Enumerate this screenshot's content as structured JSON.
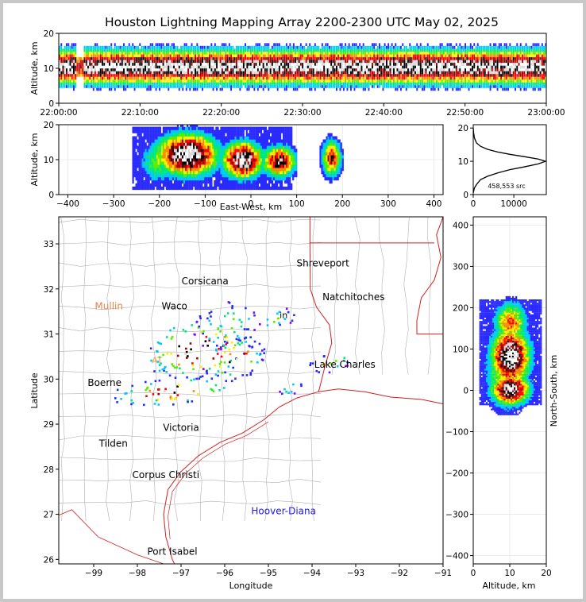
{
  "title": "Houston Lightning Mapping Array 2200-2300 UTC May 02, 2025",
  "chart_data": [
    {
      "name": "altitude-vs-time",
      "type": "heatmap",
      "ylabel": "Altitude, km",
      "ylim": [
        0,
        20
      ],
      "y_ticks": [
        "0",
        "10",
        "20"
      ],
      "x_ticks": [
        "22:00:00",
        "22:10:00",
        "22:20:00",
        "22:30:00",
        "22:40:00",
        "22:50:00",
        "23:00:00"
      ],
      "xlim": [
        "22:00:00",
        "23:00:00"
      ],
      "data_gap": [
        "22:02:00",
        "22:03:00"
      ],
      "peak_altitude_km": 10
    },
    {
      "name": "altitude-vs-east-west",
      "type": "heatmap",
      "xlabel": "East-West, km",
      "ylabel": "Altitude, km",
      "xlim": [
        -420,
        420
      ],
      "ylim": [
        0,
        20
      ],
      "x_ticks": [
        "−400",
        "−300",
        "−200",
        "−100",
        "0",
        "100",
        "200",
        "300",
        "400"
      ],
      "y_ticks": [
        "0",
        "10",
        "20"
      ],
      "grid": true
    },
    {
      "name": "altitude-histogram",
      "type": "line",
      "xlim": [
        0,
        18000
      ],
      "ylim": [
        0,
        21
      ],
      "x_ticks": [
        "0",
        "10000"
      ],
      "y_ticks": [
        "0",
        "10",
        "20"
      ],
      "annotation": "458,553 src",
      "series": [
        {
          "x": [
            0,
            100,
            300,
            800,
            1800,
            3500,
            6000,
            9000,
            12500,
            16000,
            17800,
            16000,
            12500,
            9000,
            6000,
            3500,
            1800,
            800,
            300,
            100,
            0
          ],
          "y": [
            0.5,
            1,
            2,
            3,
            4.5,
            5.5,
            6.5,
            7.5,
            8.3,
            9.2,
            10,
            10.7,
            11.4,
            12.1,
            12.8,
            13.6,
            14.5,
            15.5,
            17,
            18.5,
            20
          ]
        }
      ]
    },
    {
      "name": "plan-view-map",
      "type": "heatmap",
      "xlabel": "Longitude",
      "ylabel": "Latitude",
      "xlim": [
        -99.8,
        -91
      ],
      "ylim": [
        25.9,
        33.6
      ],
      "x_ticks": [
        "−99",
        "−98",
        "−97",
        "−96",
        "−95",
        "−94",
        "−93",
        "−92",
        "−91"
      ],
      "y_ticks": [
        "26",
        "27",
        "28",
        "29",
        "30",
        "31",
        "32",
        "33"
      ],
      "places": [
        {
          "name": "Shreveport",
          "lon": -93.75,
          "lat": 32.5,
          "color": "#000000"
        },
        {
          "name": "Corsicana",
          "lon": -96.45,
          "lat": 32.1,
          "color": "#000000"
        },
        {
          "name": "Mullin",
          "lon": -98.65,
          "lat": 31.55,
          "color": "#e8864a"
        },
        {
          "name": "Waco",
          "lon": -97.15,
          "lat": 31.55,
          "color": "#000000"
        },
        {
          "name": "Natchitoches",
          "lon": -93.05,
          "lat": 31.75,
          "color": "#000000"
        },
        {
          "name": "Lake Charles",
          "lon": -93.25,
          "lat": 30.25,
          "color": "#000000"
        },
        {
          "name": "Boerne",
          "lon": -98.75,
          "lat": 29.85,
          "color": "#000000"
        },
        {
          "name": "Victoria",
          "lon": -97.0,
          "lat": 28.85,
          "color": "#000000"
        },
        {
          "name": "Tilden",
          "lon": -98.55,
          "lat": 28.5,
          "color": "#000000"
        },
        {
          "name": "Corpus Christi",
          "lon": -97.35,
          "lat": 27.8,
          "color": "#000000"
        },
        {
          "name": "Hoover-Diana",
          "lon": -94.65,
          "lat": 27.0,
          "color": "#1a1ae6"
        },
        {
          "name": "Port Isabel",
          "lon": -97.2,
          "lat": 26.1,
          "color": "#000000"
        }
      ],
      "partial_labels": [
        {
          "text": "in",
          "lon": -94.65,
          "lat": 31.35,
          "color": "#000000"
        },
        {
          "text": "AT",
          "lon": -97.55,
          "lat": 30.35,
          "color": "#e8a040"
        }
      ],
      "clusters": [
        {
          "lon": -96.6,
          "lat": 30.7,
          "spread_lon": 0.8,
          "spread_lat": 0.45,
          "intensity": 1.0
        },
        {
          "lon": -97.2,
          "lat": 29.75,
          "spread_lon": 0.9,
          "spread_lat": 0.2,
          "intensity": 0.9
        },
        {
          "lon": -95.8,
          "lat": 30.45,
          "spread_lon": 0.45,
          "spread_lat": 0.3,
          "intensity": 0.9
        },
        {
          "lon": -96.0,
          "lat": 31.2,
          "spread_lon": 0.5,
          "spread_lat": 0.35,
          "intensity": 0.5
        },
        {
          "lon": -94.8,
          "lat": 31.35,
          "spread_lon": 0.3,
          "spread_lat": 0.15,
          "intensity": 0.4
        },
        {
          "lon": -93.6,
          "lat": 30.4,
          "spread_lon": 0.35,
          "spread_lat": 0.15,
          "intensity": 0.5
        },
        {
          "lon": -94.5,
          "lat": 29.8,
          "spread_lon": 0.2,
          "spread_lat": 0.1,
          "intensity": 0.35
        }
      ]
    },
    {
      "name": "north-south-vs-altitude",
      "type": "heatmap",
      "xlabel": "Altitude, km",
      "ylabel": "North-South, km",
      "xlim": [
        0,
        20
      ],
      "ylim": [
        -420,
        420
      ],
      "x_ticks": [
        "0",
        "10",
        "20"
      ],
      "y_ticks": [
        "−400",
        "−300",
        "−200",
        "−100",
        "0",
        "100",
        "200",
        "300",
        "400"
      ],
      "grid": true
    }
  ],
  "colors": {
    "colormap": [
      "#ffffff",
      "#8a00ff",
      "#2a2aff",
      "#00c8ff",
      "#00e680",
      "#55ee00",
      "#ffee00",
      "#ff8800",
      "#ff0000",
      "#a00000",
      "#000000",
      "#d8d8d8",
      "#ffffff"
    ],
    "state_borders": "#d02020",
    "county_lines": "#b0b0b0",
    "frame_background": "#ffffff"
  }
}
